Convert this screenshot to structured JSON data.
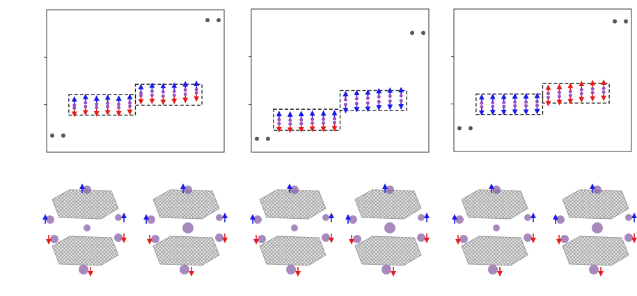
{
  "chart_data": [
    {
      "type": "scatter",
      "xlim": [
        0.5,
        16.5
      ],
      "ylim": [
        0,
        3
      ],
      "yticks": [
        1,
        2
      ],
      "series": [
        {
          "marker": "dot",
          "color": "#555555",
          "x": [
            1,
            2,
            15,
            16
          ],
          "values": [
            0.35,
            0.35,
            2.78,
            2.78
          ]
        },
        {
          "marker": "up",
          "color": "#1a1ae6",
          "x": [
            3,
            4,
            5,
            6,
            7,
            8
          ],
          "values": [
            0.99,
            1.04,
            1.01,
            1.03,
            1.01,
            1.04
          ]
        },
        {
          "marker": "down",
          "color": "#e61a1a",
          "x": [
            3,
            4,
            5,
            6,
            7,
            8
          ],
          "values": [
            0.93,
            0.96,
            0.94,
            0.96,
            0.94,
            0.97
          ]
        },
        {
          "marker": "up",
          "color": "#1a1ae6",
          "x": [
            9,
            10,
            11,
            12,
            13,
            14
          ],
          "values": [
            1.25,
            1.28,
            1.27,
            1.28,
            1.31,
            1.32
          ]
        },
        {
          "marker": "down",
          "color": "#e61a1a",
          "x": [
            9,
            10,
            11,
            12,
            13,
            14
          ],
          "values": [
            1.19,
            1.2,
            1.18,
            1.2,
            1.22,
            1.25
          ]
        }
      ],
      "boxes": [
        {
          "x": [
            2.5,
            8.5
          ],
          "y": [
            0.78,
            1.21
          ]
        },
        {
          "x": [
            8.5,
            14.5
          ],
          "y": [
            0.99,
            1.43
          ]
        }
      ]
    },
    {
      "type": "scatter",
      "xlim": [
        0.5,
        16.5
      ],
      "ylim": [
        0,
        3
      ],
      "yticks": [
        1,
        2
      ],
      "series": [
        {
          "marker": "dot",
          "color": "#555555",
          "x": [
            1,
            2,
            15,
            16
          ],
          "values": [
            0.28,
            0.28,
            2.5,
            2.5
          ]
        },
        {
          "marker": "up",
          "color": "#1a1ae6",
          "x": [
            3,
            4,
            5,
            6,
            7,
            8
          ],
          "values": [
            0.68,
            0.67,
            0.68,
            0.69,
            0.69,
            0.7
          ]
        },
        {
          "marker": "down",
          "color": "#e61a1a",
          "x": [
            3,
            4,
            5,
            6,
            7,
            8
          ],
          "values": [
            0.6,
            0.59,
            0.6,
            0.61,
            0.61,
            0.62
          ]
        },
        {
          "marker": "up",
          "color": "#1a1ae6",
          "x": [
            9,
            10,
            11,
            12,
            13,
            14
          ],
          "values": [
            1.1,
            1.12,
            1.13,
            1.16,
            1.17,
            1.18
          ]
        },
        {
          "marker": "down",
          "color": "#1a1ae6",
          "x": [
            9,
            10,
            11,
            12,
            13,
            14
          ],
          "values": [
            1.0,
            1.02,
            1.03,
            1.06,
            1.07,
            1.08
          ]
        }
      ],
      "boxes": [
        {
          "x": [
            2.5,
            8.5
          ],
          "y": [
            0.46,
            0.9
          ]
        },
        {
          "x": [
            8.5,
            14.5
          ],
          "y": [
            0.87,
            1.29
          ]
        }
      ]
    },
    {
      "type": "scatter",
      "xlim": [
        0.5,
        16.5
      ],
      "ylim": [
        0,
        3
      ],
      "yticks": [
        1,
        2
      ],
      "series": [
        {
          "marker": "dot",
          "color": "#555555",
          "x": [
            1,
            2,
            15,
            16
          ],
          "values": [
            0.49,
            0.49,
            2.74,
            2.74
          ]
        },
        {
          "marker": "up",
          "color": "#1a1ae6",
          "x": [
            3,
            4,
            5,
            6,
            7,
            8
          ],
          "values": [
            1.02,
            1.03,
            1.03,
            1.04,
            1.04,
            1.05
          ]
        },
        {
          "marker": "down",
          "color": "#1a1ae6",
          "x": [
            3,
            4,
            5,
            6,
            7,
            8
          ],
          "values": [
            0.94,
            0.95,
            0.95,
            0.96,
            0.96,
            0.97
          ]
        },
        {
          "marker": "up",
          "color": "#e61a1a",
          "x": [
            9,
            10,
            11,
            12,
            13,
            14
          ],
          "values": [
            1.22,
            1.24,
            1.26,
            1.3,
            1.32,
            1.33
          ]
        },
        {
          "marker": "down",
          "color": "#e61a1a",
          "x": [
            9,
            10,
            11,
            12,
            13,
            14
          ],
          "values": [
            1.14,
            1.16,
            1.18,
            1.22,
            1.24,
            1.25
          ]
        }
      ],
      "boxes": [
        {
          "x": [
            2.5,
            8.5
          ],
          "y": [
            0.78,
            1.21
          ]
        },
        {
          "x": [
            8.5,
            14.5
          ],
          "y": [
            1.02,
            1.43
          ]
        }
      ]
    }
  ]
}
